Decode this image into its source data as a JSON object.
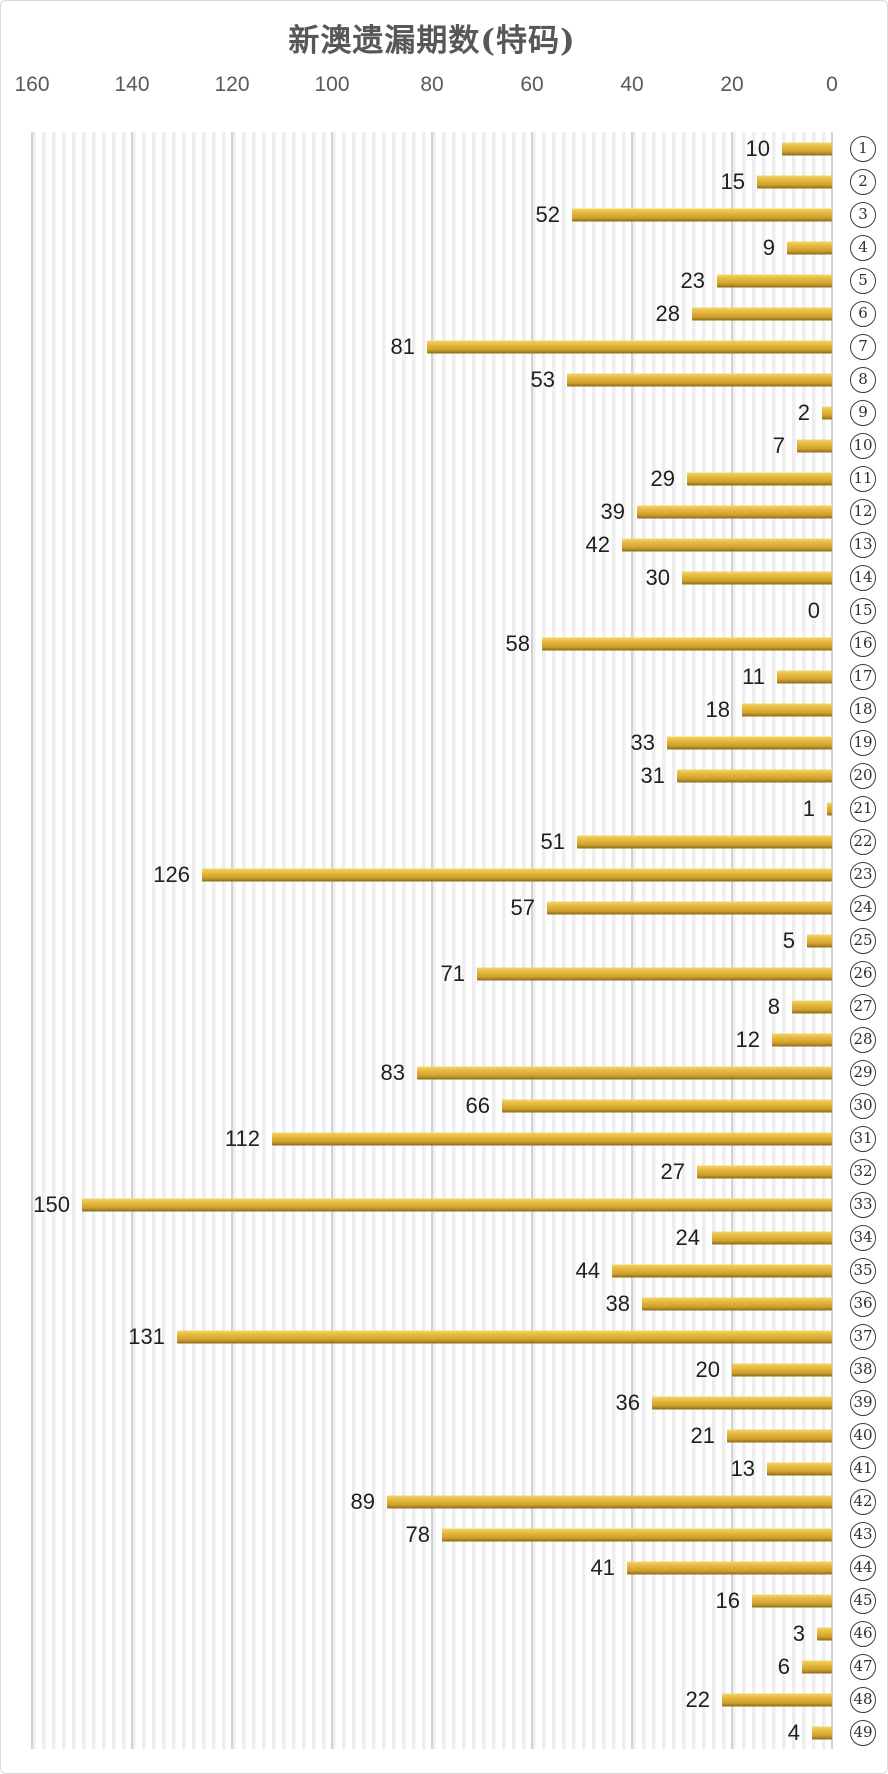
{
  "chart_data": {
    "type": "bar",
    "orientation": "horizontal",
    "title": "新澳遗漏期数(特码)",
    "categories": [
      1,
      2,
      3,
      4,
      5,
      6,
      7,
      8,
      9,
      10,
      11,
      12,
      13,
      14,
      15,
      16,
      17,
      18,
      19,
      20,
      21,
      22,
      23,
      24,
      25,
      26,
      27,
      28,
      29,
      30,
      31,
      32,
      33,
      34,
      35,
      36,
      37,
      38,
      39,
      40,
      41,
      42,
      43,
      44,
      45,
      46,
      47,
      48,
      49
    ],
    "values": [
      10,
      15,
      52,
      9,
      23,
      28,
      81,
      53,
      2,
      7,
      29,
      39,
      42,
      30,
      0,
      58,
      11,
      18,
      33,
      31,
      1,
      51,
      126,
      57,
      5,
      71,
      8,
      12,
      83,
      66,
      112,
      27,
      150,
      24,
      44,
      38,
      131,
      20,
      36,
      21,
      13,
      89,
      78,
      41,
      16,
      3,
      6,
      22,
      4
    ],
    "xlabel": "",
    "ylabel": "",
    "axis_ticks": [
      160,
      140,
      120,
      100,
      80,
      60,
      40,
      20,
      0
    ],
    "xlim": [
      160,
      0
    ],
    "value_axis_reversed": true,
    "grid": true,
    "legend": "none",
    "bar_color": "#ddae34",
    "bar_gradient_top": "#f4d76c",
    "bar_gradient_bottom": "#8a691a",
    "gridline_color": "#d2d2d2",
    "title_color": "#575757",
    "tick_color": "#595959",
    "value_label_color": "#1f1f1f",
    "category_badge_style": "circled-number"
  }
}
